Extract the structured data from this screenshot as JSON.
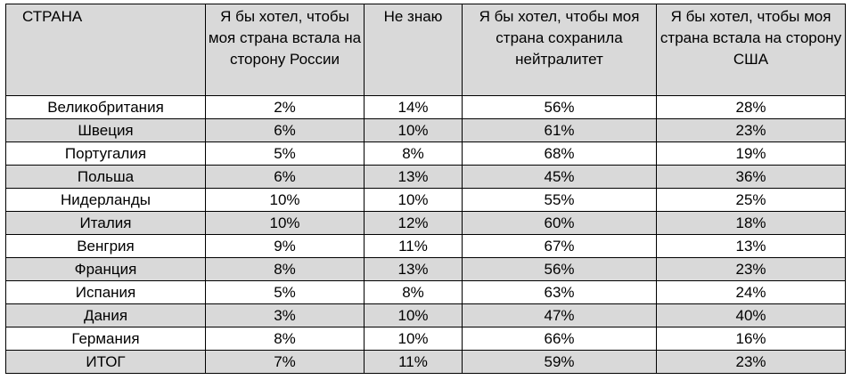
{
  "table": {
    "headers": [
      "СТРАНА",
      "Я бы хотел, чтобы моя страна встала на сторону России",
      "Не знаю",
      "Я бы хотел, чтобы моя страна сохранила нейтралитет",
      "Я бы хотел, чтобы моя страна встала на сторону США"
    ],
    "rows": [
      [
        "Великобритания",
        "2%",
        "14%",
        "56%",
        "28%"
      ],
      [
        "Швеция",
        "6%",
        "10%",
        "61%",
        "23%"
      ],
      [
        "Португалия",
        "5%",
        "8%",
        "68%",
        "19%"
      ],
      [
        "Польша",
        "6%",
        "13%",
        "45%",
        "36%"
      ],
      [
        "Нидерланды",
        "10%",
        "10%",
        "55%",
        "25%"
      ],
      [
        "Италия",
        "10%",
        "12%",
        "60%",
        "18%"
      ],
      [
        "Венгрия",
        "9%",
        "11%",
        "67%",
        "13%"
      ],
      [
        "Франция",
        "8%",
        "13%",
        "56%",
        "23%"
      ],
      [
        "Испания",
        "5%",
        "8%",
        "63%",
        "24%"
      ],
      [
        "Дания",
        "3%",
        "10%",
        "47%",
        "40%"
      ],
      [
        "Германия",
        "8%",
        "10%",
        "66%",
        "16%"
      ],
      [
        "ИТОГ",
        "7%",
        "11%",
        "59%",
        "23%"
      ]
    ]
  },
  "colors": {
    "stripe": "#d9d9d9",
    "border": "#000000",
    "background": "#ffffff"
  }
}
